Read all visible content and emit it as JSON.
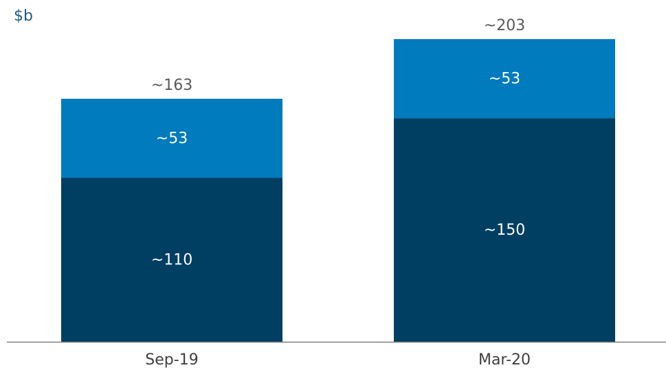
{
  "chart_data": {
    "type": "stacked_bar",
    "unit_label": "$b",
    "categories": [
      "Sep-19",
      "Mar-20"
    ],
    "series": [
      {
        "color": "#003f62",
        "values": [
          110,
          150
        ],
        "value_labels": [
          "~110",
          "~150"
        ]
      },
      {
        "color": "#007bbd",
        "values": [
          53,
          53
        ],
        "value_labels": [
          "~53",
          "~53"
        ]
      }
    ],
    "totals": [
      163,
      203
    ],
    "total_value_labels": [
      "~163",
      "~203"
    ]
  }
}
